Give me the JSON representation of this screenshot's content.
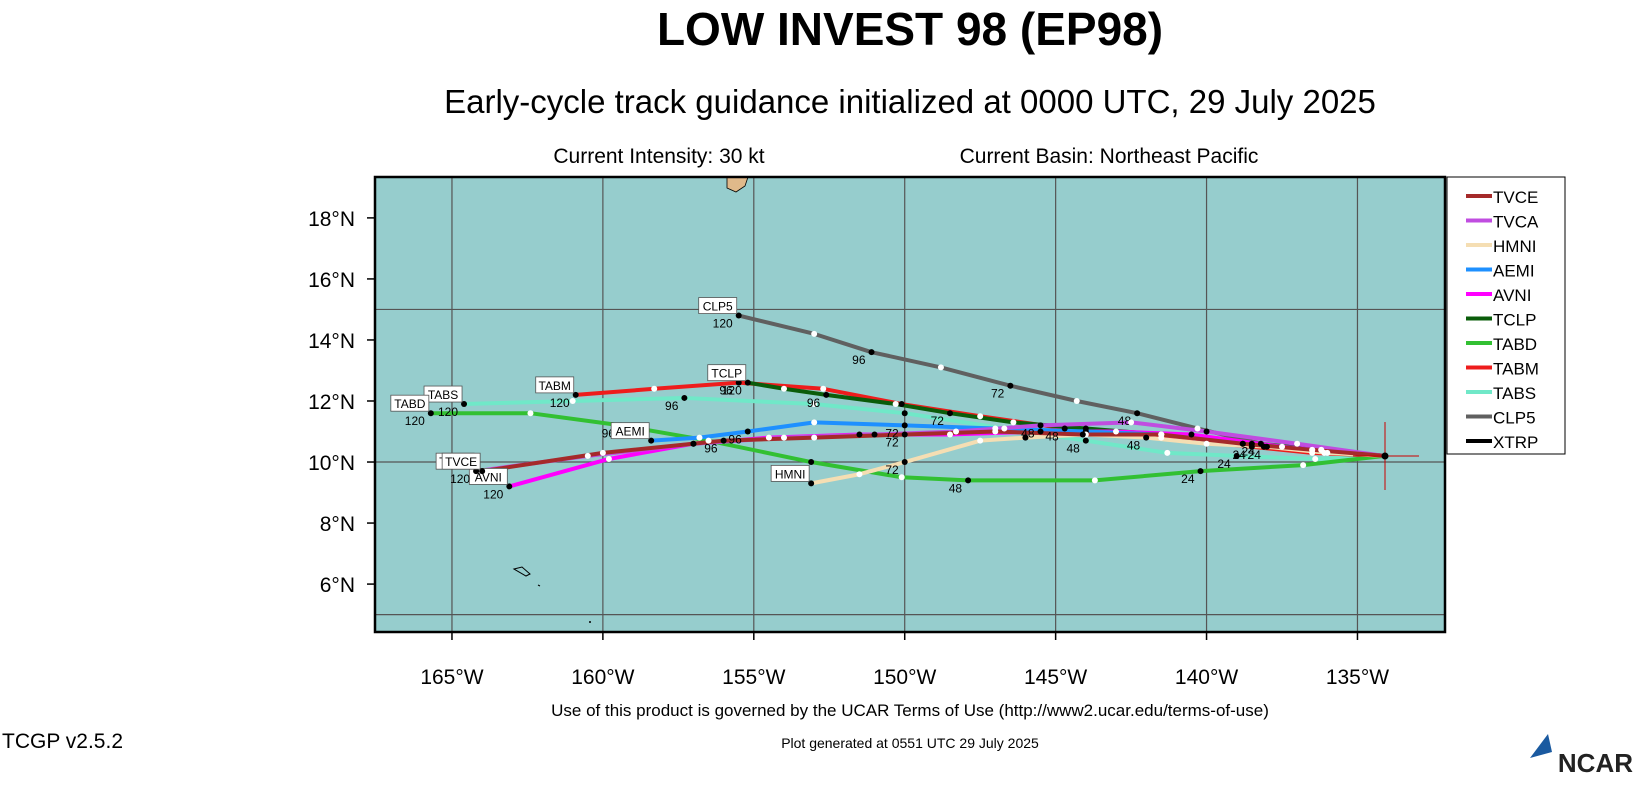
{
  "chart_data": {
    "type": "line",
    "title": "LOW INVEST 98 (EP98)",
    "subtitle": "Early-cycle track guidance initialized at 0000 UTC, 29 July 2025",
    "intensity": "Current Intensity: 30 kt",
    "basin": "Current Basin: Northeast Pacific",
    "xlim": [
      -167.55,
      -132.1
    ],
    "ylim": [
      4.43,
      19.34
    ],
    "xticks": [
      {
        "value": -165,
        "label": "165°W"
      },
      {
        "value": -160,
        "label": "160°W"
      },
      {
        "value": -155,
        "label": "155°W"
      },
      {
        "value": -150,
        "label": "150°W"
      },
      {
        "value": -145,
        "label": "145°W"
      },
      {
        "value": -140,
        "label": "140°W"
      },
      {
        "value": -135,
        "label": "135°W"
      }
    ],
    "yticks": [
      {
        "value": 6,
        "label": "6°N"
      },
      {
        "value": 8,
        "label": "8°N"
      },
      {
        "value": 10,
        "label": "10°N"
      },
      {
        "value": 12,
        "label": "12°N"
      },
      {
        "value": 14,
        "label": "14°N"
      },
      {
        "value": 16,
        "label": "16°N"
      },
      {
        "value": 18,
        "label": "18°N"
      }
    ],
    "ygrid": [
      5,
      10,
      15
    ],
    "ocean_color": "#96cdcd",
    "series": [
      {
        "name": "TVCE",
        "color": "#a52a2a",
        "x": [
          -134.1,
          -136.5,
          -138.8,
          -141.5,
          -144.1,
          -147.0,
          -150.0,
          -153.0,
          -156.0,
          -160.0,
          -164.0
        ],
        "values": [
          10.2,
          10.4,
          10.6,
          10.9,
          10.9,
          11.0,
          10.9,
          10.8,
          10.7,
          10.3,
          9.7
        ],
        "tau_labels": [
          null,
          null,
          null,
          null,
          null,
          null,
          "72",
          null,
          "96",
          null,
          null
        ]
      },
      {
        "name": "TVCA",
        "color": "#c04de0",
        "x": [
          -134.1,
          -137.0,
          -140.0,
          -142.5,
          -145.5,
          -148.3,
          -151.0,
          -154.0,
          -157.0,
          -160.5,
          -164.2
        ],
        "values": [
          10.2,
          10.6,
          11.0,
          11.3,
          11.2,
          11.0,
          10.9,
          10.8,
          10.6,
          10.2,
          9.7
        ],
        "tau_labels": [
          null,
          null,
          null,
          null,
          "48",
          null,
          null,
          null,
          null,
          null,
          "120"
        ]
      },
      {
        "name": "HMNI",
        "color": "#f5deb3",
        "x": [
          -134.1,
          -136.0,
          -138.0,
          -140.0,
          -142.0,
          -144.0,
          -146.0,
          -147.5,
          -150.0,
          -151.5,
          -153.1
        ],
        "values": [
          10.2,
          10.3,
          10.5,
          10.6,
          10.8,
          10.9,
          10.8,
          10.7,
          10.0,
          9.6,
          9.3
        ],
        "tau_labels": [
          null,
          null,
          "24",
          null,
          "48",
          null,
          null,
          null,
          "72",
          null,
          null
        ]
      },
      {
        "name": "AEMI",
        "color": "#1e90ff",
        "x": [
          -134.1,
          -136.5,
          -138.8,
          -141.5,
          -144.0,
          -147.0,
          -150.0,
          -153.0,
          -155.2,
          -156.8,
          -158.4
        ],
        "values": [
          10.2,
          10.4,
          10.6,
          10.9,
          11.0,
          11.1,
          11.2,
          11.3,
          11.0,
          10.8,
          10.7
        ],
        "tau_labels": [
          null,
          null,
          null,
          null,
          null,
          null,
          "72",
          null,
          "96",
          null,
          null
        ]
      },
      {
        "name": "AVNI",
        "color": "#ff00ff",
        "x": [
          -134.1,
          -137.5,
          -140.5,
          -143.0,
          -145.5,
          -148.5,
          -151.5,
          -154.5,
          -157.0,
          -159.8,
          -163.1
        ],
        "values": [
          10.2,
          10.5,
          10.9,
          11.0,
          11.0,
          10.9,
          10.9,
          10.8,
          10.6,
          10.1,
          9.2
        ],
        "tau_labels": [
          null,
          null,
          null,
          null,
          null,
          null,
          null,
          null,
          null,
          null,
          "120"
        ]
      },
      {
        "name": "TCLP",
        "color": "#0a5c0a",
        "x": [
          -134.1,
          -136.2,
          -138.5,
          -141.5,
          -144.0,
          -146.4,
          -148.5,
          -150.3,
          -152.6,
          -154.0,
          -155.2
        ],
        "values": [
          10.2,
          10.4,
          10.6,
          10.9,
          11.1,
          11.3,
          11.6,
          11.9,
          12.2,
          12.4,
          12.6
        ],
        "tau_labels": [
          null,
          null,
          null,
          null,
          null,
          null,
          "72",
          null,
          "96",
          null,
          "120"
        ]
      },
      {
        "name": "TABD",
        "color": "#32c032",
        "x": [
          -134.1,
          -136.8,
          -140.2,
          -143.7,
          -147.9,
          -150.1,
          -153.1,
          -156.5,
          -159.4,
          -162.4,
          -165.7
        ],
        "values": [
          10.2,
          9.9,
          9.7,
          9.4,
          9.4,
          9.5,
          10.0,
          10.7,
          11.2,
          11.6,
          11.6
        ],
        "tau_labels": [
          null,
          null,
          "24",
          null,
          "48",
          null,
          "72",
          null,
          "96",
          null,
          "120"
        ]
      },
      {
        "name": "TABM",
        "color": "#ee1c1c",
        "x": [
          -134.1,
          -136.5,
          -138.5,
          -141.5,
          -144.7,
          -147.5,
          -150.1,
          -152.7,
          -155.5,
          -158.3,
          -160.9
        ],
        "values": [
          10.2,
          10.3,
          10.5,
          10.8,
          11.1,
          11.5,
          11.9,
          12.4,
          12.6,
          12.4,
          12.2
        ],
        "tau_labels": [
          null,
          null,
          "24",
          null,
          "48",
          null,
          null,
          null,
          "96",
          null,
          "120"
        ]
      },
      {
        "name": "TABS",
        "color": "#70e8c8",
        "x": [
          -134.1,
          -136.4,
          -139.0,
          -141.3,
          -144.0,
          -146.7,
          -150.0,
          -153.0,
          -157.3,
          -161.0,
          -164.6
        ],
        "values": [
          10.2,
          10.1,
          10.2,
          10.3,
          10.7,
          11.1,
          11.6,
          11.9,
          12.1,
          12.0,
          11.9
        ],
        "tau_labels": [
          null,
          null,
          "24",
          null,
          "48",
          null,
          null,
          null,
          "96",
          null,
          "120"
        ]
      },
      {
        "name": "CLP5",
        "color": "#606060",
        "x": [
          -134.1,
          -136.2,
          -138.2,
          -140.3,
          -142.3,
          -144.3,
          -146.5,
          -148.8,
          -151.1,
          -153.0,
          -155.5
        ],
        "values": [
          10.2,
          10.4,
          10.6,
          11.1,
          11.6,
          12.0,
          12.5,
          13.1,
          13.6,
          14.2,
          14.8
        ],
        "tau_labels": [
          null,
          null,
          "24",
          null,
          "48",
          null,
          "72",
          null,
          "96",
          null,
          "120"
        ]
      },
      {
        "name": "XTRP",
        "color": "#000000",
        "x": [
          -134.1,
          -136.1,
          -138.1
        ],
        "values": [
          10.2,
          10.3,
          10.5
        ],
        "tau_labels": [
          null,
          null,
          null
        ]
      }
    ]
  },
  "footer": {
    "terms": "Use of this product is governed by the UCAR Terms of Use (http://www2.ucar.edu/terms-of-use)",
    "generated": "Plot generated at 0551 UTC   29 July 2025",
    "version": "TCGP v2.5.2",
    "logo": "NCAR"
  }
}
